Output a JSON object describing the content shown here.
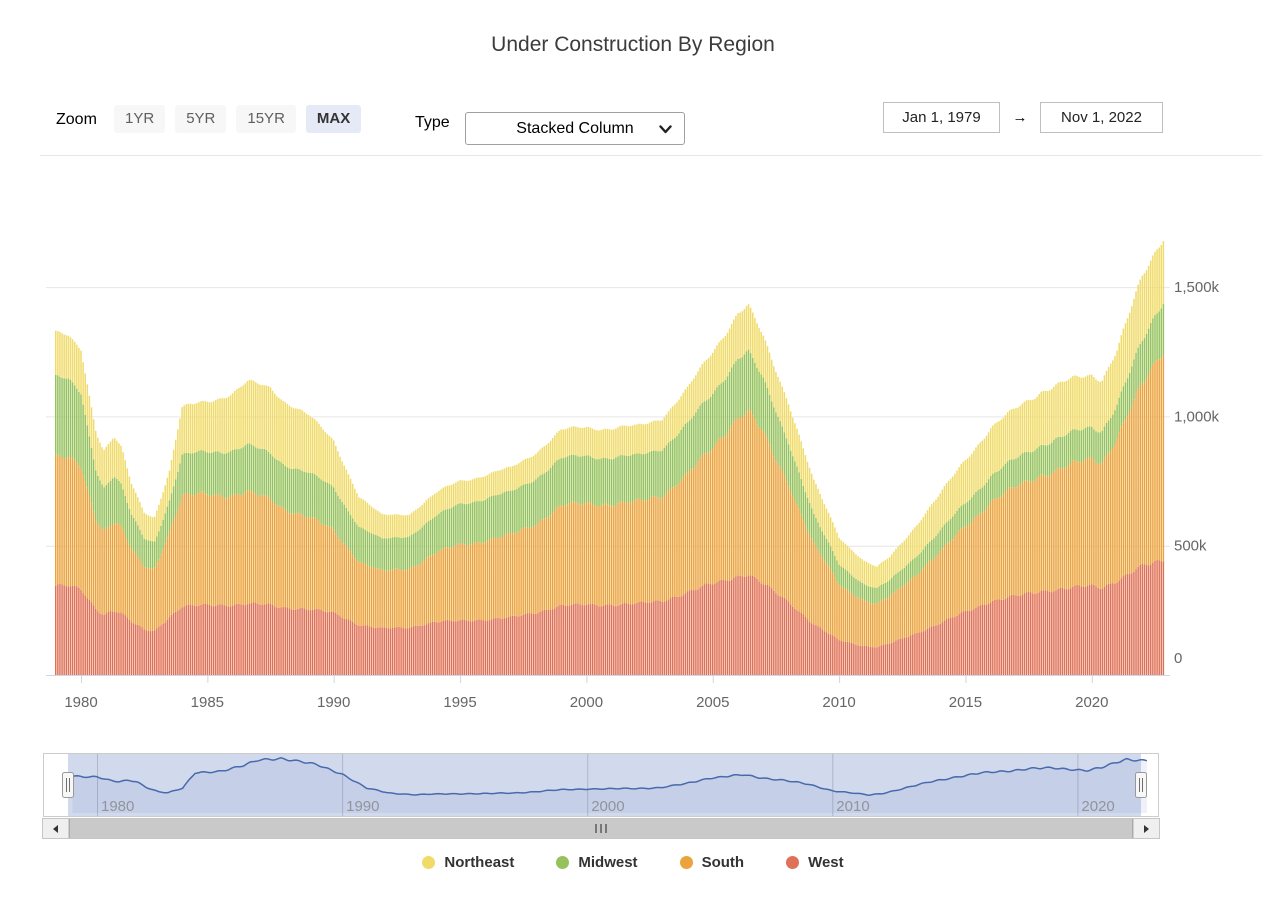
{
  "title": "Under Construction By Region",
  "controls": {
    "zoom_label": "Zoom",
    "zoom_buttons": [
      {
        "label": "1YR",
        "active": false
      },
      {
        "label": "5YR",
        "active": false
      },
      {
        "label": "15YR",
        "active": false
      },
      {
        "label": "MAX",
        "active": true
      }
    ],
    "type_label": "Type",
    "type_value": "Stacked Column",
    "date_from": "Jan 1, 1979",
    "date_to": "Nov 1, 2022",
    "arrow": "→"
  },
  "chart_data": {
    "type": "bar",
    "stacked": true,
    "title": "Under Construction By Region",
    "unit": "thousands of housing units under construction, monthly",
    "x_range": [
      1979.0,
      2022.8333
    ],
    "x_ticks": [
      1980,
      1985,
      1990,
      1995,
      2000,
      2005,
      2010,
      2015,
      2020
    ],
    "y_ticks": [
      {
        "value": 0,
        "label": "0"
      },
      {
        "value": 500,
        "label": "500k"
      },
      {
        "value": 1000,
        "label": "1,000k"
      },
      {
        "value": 1500,
        "label": "1,500k"
      }
    ],
    "ylim": [
      0,
      1780
    ],
    "grid": true,
    "legend_position": "bottom",
    "stack_order_bottom_to_top": [
      "West",
      "South",
      "Midwest",
      "Northeast"
    ],
    "anchors_x": [
      1979.0,
      1979.5,
      1980.0,
      1980.6,
      1980.9,
      1981.3,
      1981.6,
      1982.0,
      1982.5,
      1982.9,
      1983.5,
      1984.0,
      1985.0,
      1986.0,
      1986.6,
      1987.5,
      1988.0,
      1989.0,
      1990.0,
      1991.0,
      1991.9,
      1993.0,
      1994.0,
      1995.0,
      1996.0,
      1997.0,
      1998.0,
      1999.0,
      2000.0,
      2001.0,
      2002.0,
      2003.0,
      2004.0,
      2005.0,
      2006.0,
      2006.4,
      2007.0,
      2008.0,
      2009.0,
      2010.0,
      2011.0,
      2011.5,
      2012.0,
      2013.0,
      2014.0,
      2015.0,
      2016.0,
      2017.0,
      2018.0,
      2019.0,
      2020.0,
      2020.4,
      2021.0,
      2022.0,
      2022.83
    ],
    "series": [
      {
        "name": "Northeast",
        "color": "#F0DB69",
        "values": [
          170,
          168,
          170,
          150,
          145,
          150,
          145,
          120,
          100,
          95,
          115,
          185,
          195,
          220,
          245,
          255,
          245,
          222,
          182,
          115,
          93,
          85,
          88,
          90,
          90,
          93,
          100,
          108,
          112,
          112,
          114,
          118,
          135,
          163,
          173,
          176,
          165,
          153,
          133,
          104,
          90,
          83,
          90,
          117,
          144,
          167,
          184,
          194,
          206,
          208,
          202,
          198,
          210,
          250,
          245
        ]
      },
      {
        "name": "Midwest",
        "color": "#95C25D",
        "values": [
          310,
          300,
          285,
          190,
          165,
          175,
          160,
          130,
          110,
          105,
          120,
          155,
          165,
          173,
          180,
          178,
          173,
          170,
          165,
          135,
          123,
          127,
          140,
          158,
          163,
          165,
          176,
          182,
          184,
          180,
          178,
          182,
          195,
          210,
          228,
          230,
          205,
          165,
          110,
          80,
          63,
          60,
          63,
          72,
          80,
          92,
          100,
          110,
          118,
          122,
          123,
          122,
          130,
          165,
          195
        ]
      },
      {
        "name": "South",
        "color": "#EBA33D",
        "values": [
          495,
          490,
          475,
          350,
          325,
          345,
          330,
          280,
          245,
          240,
          330,
          425,
          430,
          425,
          430,
          410,
          385,
          355,
          320,
          245,
          220,
          228,
          265,
          295,
          305,
          318,
          345,
          385,
          392,
          390,
          392,
          410,
          455,
          525,
          618,
          630,
          580,
          455,
          310,
          215,
          175,
          165,
          180,
          225,
          275,
          330,
          385,
          420,
          450,
          470,
          490,
          485,
          555,
          700,
          815
        ]
      },
      {
        "name": "West",
        "color": "#DF7157",
        "values": [
          345,
          345,
          330,
          255,
          235,
          250,
          240,
          205,
          175,
          170,
          225,
          265,
          270,
          272,
          275,
          270,
          262,
          255,
          240,
          195,
          180,
          185,
          205,
          210,
          215,
          222,
          242,
          268,
          272,
          272,
          275,
          288,
          318,
          355,
          383,
          388,
          352,
          285,
          195,
          135,
          112,
          108,
          122,
          160,
          200,
          245,
          285,
          305,
          325,
          335,
          345,
          340,
          365,
          420,
          445
        ]
      }
    ],
    "navigator": {
      "series_shown": "Northeast",
      "line_color": "#4A69AD",
      "mask_color": "rgba(102,133,194,0.3)",
      "tick_labels": [
        "1980",
        "1990",
        "2000",
        "2010",
        "2020"
      ]
    }
  },
  "legend": [
    {
      "label": "Northeast",
      "color": "#F0DB69"
    },
    {
      "label": "Midwest",
      "color": "#95C25D"
    },
    {
      "label": "South",
      "color": "#EBA33D"
    },
    {
      "label": "West",
      "color": "#DF7157"
    }
  ],
  "scrollbar": {
    "grip": "III"
  },
  "colors": {
    "grid_line": "#E6E6E6",
    "axis_line": "#CCD6EB",
    "axis_label": "#666666",
    "nav_label": "#999999",
    "title_text": "#3C3C3C"
  }
}
